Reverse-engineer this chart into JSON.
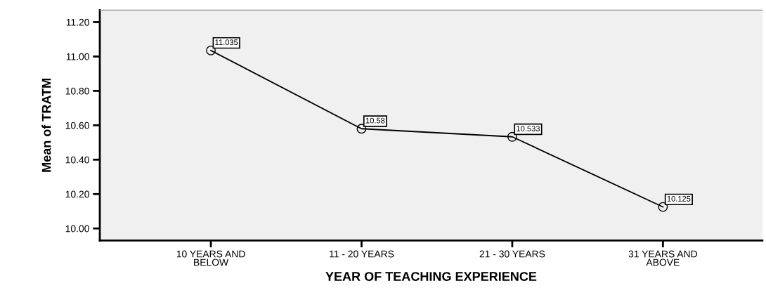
{
  "chart_data": {
    "type": "line",
    "categories": [
      "10 YEARS AND\nBELOW",
      "11 - 20 YEARS",
      "21 - 30 YEARS",
      "31 YEARS AND\nABOVE"
    ],
    "values": [
      11.035,
      10.58,
      10.533,
      10.125
    ],
    "color": "#000000",
    "xlabel": "YEAR OF TEACHING EXPERIENCE",
    "ylabel": "Mean of TRATM",
    "ylim": [
      9.93,
      11.27
    ],
    "yticks": [
      {
        "value": 10.0,
        "label": "10.00"
      },
      {
        "value": 10.2,
        "label": "10.20"
      },
      {
        "value": 10.4,
        "label": "10.40"
      },
      {
        "value": 10.6,
        "label": "10.60"
      },
      {
        "value": 10.8,
        "label": "10.80"
      },
      {
        "value": 11.0,
        "label": "11.00"
      },
      {
        "value": 11.2,
        "label": "11.20"
      }
    ],
    "marker": "circle",
    "line_style": "solid",
    "grid": false,
    "data_labels": true
  }
}
